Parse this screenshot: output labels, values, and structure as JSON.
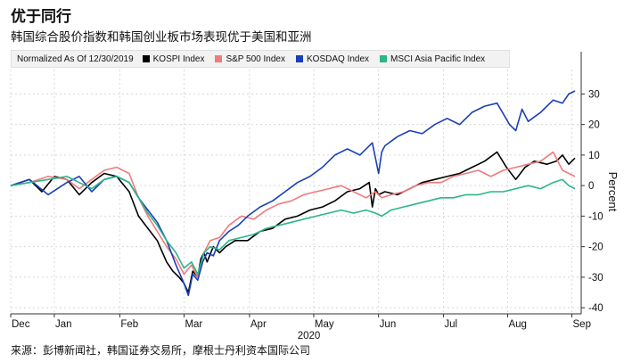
{
  "title": "优于同行",
  "subtitle": "韩国综合股价指数和韩国创业板市场表现优于美国和亚洲",
  "legend": {
    "normalized_label": "Normalized As Of 12/30/2019",
    "items": [
      {
        "label": "KOSPI Index",
        "color": "#000000"
      },
      {
        "label": "S&P 500 Index",
        "color": "#f07b7b"
      },
      {
        "label": "KOSDAQ Index",
        "color": "#1a3fb8"
      },
      {
        "label": "MSCI Asia Pacific Index",
        "color": "#2bb58a"
      }
    ]
  },
  "source": "来源：彭博新闻社，韩国证券交易所，摩根士丹利资本国际公司",
  "chart_data": {
    "type": "line",
    "ylabel": "Percent",
    "year_label": "2020",
    "ylim": [
      -42,
      38
    ],
    "yticks": [
      -40,
      -30,
      -20,
      -10,
      0,
      10,
      20,
      30
    ],
    "xlim": [
      0,
      9.15
    ],
    "xticks": [
      {
        "label": "Dec",
        "pos": 0
      },
      {
        "label": "Jan",
        "pos": 0.7
      },
      {
        "label": "Feb",
        "pos": 1.75
      },
      {
        "label": "Mar",
        "pos": 2.78
      },
      {
        "label": "Apr",
        "pos": 3.83
      },
      {
        "label": "May",
        "pos": 4.86
      },
      {
        "label": "Jun",
        "pos": 5.9
      },
      {
        "label": "Jul",
        "pos": 6.94
      },
      {
        "label": "Aug",
        "pos": 7.97
      },
      {
        "label": "Sep",
        "pos": 9.0
      }
    ],
    "series": [
      {
        "name": "KOSPI Index",
        "color": "#000000",
        "x": [
          0,
          0.3,
          0.5,
          0.7,
          0.9,
          1.1,
          1.3,
          1.5,
          1.7,
          1.9,
          2.05,
          2.2,
          2.35,
          2.5,
          2.6,
          2.7,
          2.78,
          2.85,
          2.92,
          3.0,
          3.05,
          3.1,
          3.15,
          3.25,
          3.35,
          3.45,
          3.6,
          3.8,
          4.0,
          4.2,
          4.4,
          4.6,
          4.8,
          5.0,
          5.2,
          5.4,
          5.6,
          5.75,
          5.8,
          5.85,
          5.9,
          6.0,
          6.2,
          6.4,
          6.6,
          6.8,
          7.0,
          7.2,
          7.4,
          7.6,
          7.8,
          7.95,
          8.1,
          8.25,
          8.4,
          8.6,
          8.75,
          8.85,
          8.95,
          9.05
        ],
        "y": [
          0,
          2,
          -2,
          3,
          2,
          -3,
          1,
          4,
          3,
          -2,
          -10,
          -14,
          -18,
          -25,
          -28,
          -30,
          -32,
          -35,
          -28,
          -30,
          -24,
          -22,
          -25,
          -20,
          -22,
          -20,
          -18,
          -18,
          -15,
          -14,
          -11,
          -10,
          -8,
          -7,
          -5,
          -2,
          -1,
          1,
          -7,
          -1,
          -3,
          -2,
          -3,
          -1,
          1,
          2,
          3,
          4,
          6,
          8,
          11,
          6,
          2,
          6,
          8,
          7,
          8,
          10,
          7,
          9
        ]
      },
      {
        "name": "S&P 500 Index",
        "color": "#f07b7b",
        "x": [
          0,
          0.3,
          0.6,
          0.9,
          1.1,
          1.3,
          1.5,
          1.7,
          1.9,
          2.05,
          2.2,
          2.35,
          2.5,
          2.65,
          2.78,
          2.9,
          3.0,
          3.1,
          3.2,
          3.35,
          3.5,
          3.7,
          3.9,
          4.1,
          4.3,
          4.5,
          4.7,
          4.9,
          5.1,
          5.3,
          5.5,
          5.7,
          5.85,
          5.95,
          6.1,
          6.3,
          6.5,
          6.7,
          6.9,
          7.1,
          7.3,
          7.5,
          7.7,
          7.9,
          8.1,
          8.3,
          8.5,
          8.7,
          8.85,
          8.95,
          9.05
        ],
        "y": [
          0,
          1,
          3,
          2,
          -1,
          2,
          5,
          6,
          4,
          -4,
          -10,
          -15,
          -20,
          -24,
          -29,
          -26,
          -30,
          -22,
          -18,
          -17,
          -13,
          -10,
          -11,
          -8,
          -6,
          -5,
          -3,
          -2,
          -1,
          0,
          -2,
          -4,
          -2,
          -4,
          -3,
          -2,
          0,
          1,
          1,
          3,
          4,
          5,
          3,
          5,
          6,
          7,
          8,
          11,
          5,
          4,
          3
        ]
      },
      {
        "name": "KOSDAQ Index",
        "color": "#1a3fb8",
        "x": [
          0,
          0.3,
          0.6,
          0.9,
          1.1,
          1.3,
          1.5,
          1.7,
          1.9,
          2.05,
          2.2,
          2.35,
          2.5,
          2.65,
          2.78,
          2.85,
          2.92,
          3.0,
          3.08,
          3.15,
          3.25,
          3.35,
          3.5,
          3.65,
          3.8,
          4.0,
          4.2,
          4.4,
          4.6,
          4.8,
          5.0,
          5.2,
          5.4,
          5.6,
          5.8,
          5.9,
          5.95,
          6.0,
          6.2,
          6.4,
          6.6,
          6.8,
          7.0,
          7.2,
          7.4,
          7.6,
          7.8,
          8.0,
          8.1,
          8.2,
          8.3,
          8.5,
          8.7,
          8.85,
          8.95,
          9.05
        ],
        "y": [
          0,
          2,
          -3,
          1,
          3,
          -2,
          2,
          3,
          1,
          -4,
          -8,
          -12,
          -18,
          -26,
          -32,
          -36,
          -29,
          -31,
          -25,
          -22,
          -23,
          -18,
          -15,
          -13,
          -10,
          -7,
          -5,
          -2,
          1,
          3,
          6,
          10,
          12,
          10,
          14,
          4,
          11,
          13,
          16,
          18,
          17,
          20,
          22,
          20,
          24,
          26,
          27,
          20,
          18,
          25,
          21,
          24,
          28,
          27,
          30,
          31
        ]
      },
      {
        "name": "MSCI Asia Pacific Index",
        "color": "#2bb58a",
        "x": [
          0,
          0.3,
          0.6,
          0.9,
          1.1,
          1.3,
          1.5,
          1.7,
          1.9,
          2.05,
          2.2,
          2.35,
          2.5,
          2.65,
          2.78,
          2.9,
          3.0,
          3.1,
          3.2,
          3.35,
          3.5,
          3.7,
          3.9,
          4.1,
          4.3,
          4.5,
          4.7,
          4.9,
          5.1,
          5.3,
          5.5,
          5.7,
          5.85,
          5.95,
          6.1,
          6.3,
          6.5,
          6.7,
          6.9,
          7.1,
          7.3,
          7.5,
          7.7,
          7.9,
          8.1,
          8.3,
          8.5,
          8.7,
          8.85,
          8.95,
          9.05
        ],
        "y": [
          0,
          1,
          2,
          3,
          1,
          -1,
          2,
          3,
          1,
          -4,
          -9,
          -13,
          -18,
          -22,
          -27,
          -25,
          -29,
          -22,
          -20,
          -21,
          -18,
          -17,
          -16,
          -14,
          -13,
          -12,
          -11,
          -10,
          -9,
          -8,
          -9,
          -8,
          -9,
          -10,
          -8,
          -7,
          -6,
          -5,
          -4,
          -4,
          -3,
          -3,
          -2,
          -2,
          -1,
          0,
          -1,
          1,
          2,
          0,
          -1
        ]
      }
    ]
  }
}
